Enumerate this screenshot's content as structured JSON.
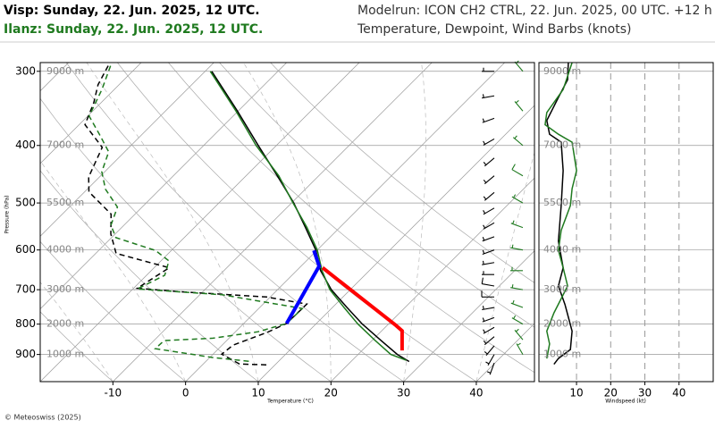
{
  "header": {
    "station_1": "Visp: Sunday, 22. Jun. 2025, 12 UTC.",
    "station_2": "Ilanz: Sunday, 22. Jun. 2025, 12 UTC.",
    "modelrun": "Modelrun: ICON CH2 CTRL, 22. Jun. 2025, 00 UTC. +12 h",
    "description": "Temperature, Dewpoint, Wind Barbs (knots)"
  },
  "credit": "© Meteoswiss (2025)",
  "chart_data": [
    {
      "type": "skewt",
      "xlabel": "Temperature (°C)",
      "ylabel": "Pressure (hPa)",
      "xlim": [
        -20,
        48
      ],
      "xticks": [
        -10,
        0,
        10,
        20,
        30,
        40
      ],
      "ylim": [
        1000,
        290
      ],
      "yticks": [
        300,
        400,
        500,
        600,
        700,
        800,
        900
      ],
      "log_y": true,
      "height_labels": [
        "9000 m",
        "7000 m",
        "5500 m",
        "4000 m",
        "3000 m",
        "2000 m",
        "1000 m"
      ],
      "series": [
        {
          "color": "#000000",
          "dash": false,
          "pressure": [
            925,
            900,
            850,
            800,
            750,
            700,
            650,
            600,
            550,
            500,
            450,
            400,
            350,
            300
          ],
          "values": [
            28.0,
            25.4,
            21.0,
            16.4,
            12.0,
            7.4,
            3.3,
            -0.2,
            -4.7,
            -9.7,
            -15.7,
            -22.5,
            -30.1,
            -39.1
          ]
        },
        {
          "color": "#1f7a1f",
          "dash": false,
          "pressure": [
            920,
            900,
            850,
            800,
            750,
            700,
            650,
            600,
            550,
            500,
            450,
            400,
            350,
            300
          ],
          "values": [
            27.4,
            24.5,
            20.2,
            15.8,
            11.6,
            7.2,
            3.5,
            0.0,
            -4.5,
            -9.8,
            -15.5,
            -22.8,
            -30.3,
            -39.3
          ]
        },
        {
          "color": "#000000",
          "dash": true,
          "pressure": [
            937,
            934,
            899,
            868,
            827,
            798,
            740,
            720,
            705,
            696,
            643,
            608,
            564,
            522,
            479,
            452,
            403,
            369,
            339,
            316,
            292
          ],
          "values": [
            8.8,
            5.0,
            1.2,
            1.5,
            4.4,
            5.9,
            6.0,
            -0.5,
            -13.5,
            -19.5,
            -17.9,
            -27.2,
            -30.6,
            -33.3,
            -39.4,
            -41.5,
            -43.7,
            -49.2,
            -51.0,
            -52.9,
            -54.2
          ]
        },
        {
          "color": "#1f7a1f",
          "dash": true,
          "pressure": [
            924,
            911,
            880,
            853,
            845,
            824,
            798,
            753,
            714,
            698,
            662,
            626,
            601,
            572,
            545,
            508,
            474,
            443,
            410,
            383,
            357,
            322,
            292
          ],
          "values": [
            5.9,
            0.5,
            -8.7,
            -8.6,
            -2.2,
            3.1,
            5.9,
            6.0,
            -6.9,
            -19.4,
            -17.5,
            -18.9,
            -22.2,
            -29.4,
            -31.8,
            -33.4,
            -37.5,
            -40.4,
            -42.2,
            -45.9,
            -49.8,
            -51.7,
            -53.9
          ]
        },
        {
          "color": "#ff0000",
          "dash": false,
          "width": 4,
          "pressure": [
            886,
            821,
            804,
            643
          ],
          "values": [
            25.5,
            22.8,
            21.2,
            3.2
          ]
        },
        {
          "color": "#0000ff",
          "dash": false,
          "width": 4,
          "pressure": [
            798,
            639,
            601
          ],
          "values": [
            5.9,
            2.5,
            -0.4
          ]
        }
      ],
      "wind_barbs": [
        {
          "color": "#000000",
          "pressure": [
            930,
            900,
            870,
            840,
            810,
            780,
            750,
            720,
            690,
            660,
            630,
            600,
            570,
            540,
            510,
            480,
            450,
            420,
            390,
            360,
            330,
            300
          ],
          "speed": [
            5,
            5,
            5,
            5,
            5,
            5,
            5,
            10,
            10,
            5,
            5,
            5,
            5,
            5,
            5,
            5,
            5,
            5,
            5,
            5,
            5,
            5
          ],
          "direction": [
            200,
            210,
            220,
            230,
            240,
            250,
            260,
            270,
            280,
            270,
            260,
            250,
            250,
            240,
            240,
            230,
            230,
            230,
            240,
            250,
            260,
            270
          ]
        },
        {
          "color": "#1f7a1f",
          "pressure": [
            900,
            850,
            800,
            750,
            700,
            650,
            600,
            550,
            500,
            450,
            400,
            350,
            300
          ],
          "speed": [
            5,
            5,
            5,
            5,
            5,
            5,
            5,
            5,
            5,
            10,
            5,
            5,
            5
          ],
          "direction": [
            330,
            320,
            300,
            290,
            280,
            270,
            280,
            290,
            300,
            300,
            310,
            320,
            320
          ]
        }
      ]
    },
    {
      "type": "profile",
      "xlabel": "Windspeed (kt)",
      "xlim": [
        -1,
        50
      ],
      "xticks": [
        10,
        20,
        30,
        40
      ],
      "ylim": [
        1000,
        290
      ],
      "log_y": true,
      "series": [
        {
          "color": "#000000",
          "pressure": [
            290,
            310,
            332,
            363,
            383,
            395,
            441,
            505,
            580,
            643,
            690,
            741,
            822,
            883,
            914,
            935
          ],
          "values": [
            7.6,
            7.4,
            4.7,
            1.3,
            2.1,
            5.5,
            6.1,
            5.5,
            4.7,
            6.1,
            4.7,
            6.6,
            8.7,
            8.2,
            4.7,
            3.4
          ]
        },
        {
          "color": "#1f7a1f",
          "pressure": [
            290,
            322,
            352,
            369,
            383,
            395,
            441,
            473,
            505,
            556,
            601,
            643,
            690,
            766,
            822,
            864,
            914
          ],
          "values": [
            8.7,
            6.1,
            1.3,
            0.8,
            4.7,
            8.7,
            10.0,
            8.7,
            8.2,
            5.5,
            4.7,
            6.1,
            7.4,
            3.4,
            1.3,
            2.1,
            1.3
          ]
        }
      ]
    }
  ]
}
